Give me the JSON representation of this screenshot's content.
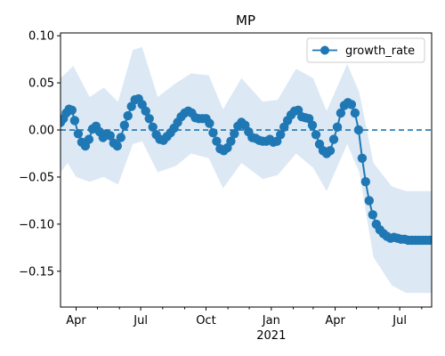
{
  "chart_data": {
    "type": "line",
    "title": "MP",
    "xlabel": "",
    "ylabel": "",
    "x_tick_labels": [
      "Apr",
      "Jul",
      "Oct",
      "Jan",
      "Apr",
      "Jul"
    ],
    "x_tick_dates": [
      "2020-04-01",
      "2020-07-01",
      "2020-10-01",
      "2021-01-01",
      "2021-04-01",
      "2021-07-01"
    ],
    "x_year_label": "2021",
    "xlim": [
      "2020-03-10",
      "2021-08-15"
    ],
    "ylim": [
      -0.188,
      0.103
    ],
    "y_ticks": [
      0.1,
      0.05,
      0.0,
      -0.05,
      -0.1,
      -0.15
    ],
    "y_tick_labels": [
      "0.10",
      "0.05",
      "0.00",
      "−0.05",
      "−0.10",
      "−0.15"
    ],
    "reference_line": {
      "y": 0.0,
      "style": "dashed"
    },
    "legend": {
      "position": "top-right",
      "entries": [
        "growth_rate"
      ]
    },
    "colors": {
      "line": "#1f77b4",
      "band": "#dce9f5"
    },
    "series": [
      {
        "name": "growth_rate",
        "points": [
          [
            "2020-03-10",
            0.008
          ],
          [
            "2020-03-14",
            0.012
          ],
          [
            "2020-03-18",
            0.018
          ],
          [
            "2020-03-22",
            0.022
          ],
          [
            "2020-03-26",
            0.021
          ],
          [
            "2020-03-30",
            0.01
          ],
          [
            "2020-04-04",
            -0.004
          ],
          [
            "2020-04-09",
            -0.013
          ],
          [
            "2020-04-14",
            -0.017
          ],
          [
            "2020-04-19",
            -0.01
          ],
          [
            "2020-04-24",
            0.001
          ],
          [
            "2020-04-29",
            0.004
          ],
          [
            "2020-05-04",
            -0.002
          ],
          [
            "2020-05-09",
            -0.008
          ],
          [
            "2020-05-14",
            -0.004
          ],
          [
            "2020-05-19",
            -0.006
          ],
          [
            "2020-05-24",
            -0.014
          ],
          [
            "2020-05-29",
            -0.017
          ],
          [
            "2020-06-03",
            -0.008
          ],
          [
            "2020-06-08",
            0.005
          ],
          [
            "2020-06-13",
            0.015
          ],
          [
            "2020-06-18",
            0.025
          ],
          [
            "2020-06-23",
            0.032
          ],
          [
            "2020-06-28",
            0.033
          ],
          [
            "2020-07-03",
            0.027
          ],
          [
            "2020-07-08",
            0.02
          ],
          [
            "2020-07-13",
            0.012
          ],
          [
            "2020-07-18",
            0.003
          ],
          [
            "2020-07-23",
            -0.005
          ],
          [
            "2020-07-28",
            -0.01
          ],
          [
            "2020-08-02",
            -0.011
          ],
          [
            "2020-08-07",
            -0.007
          ],
          [
            "2020-08-12",
            -0.003
          ],
          [
            "2020-08-17",
            0.002
          ],
          [
            "2020-08-22",
            0.008
          ],
          [
            "2020-08-27",
            0.014
          ],
          [
            "2020-09-01",
            0.018
          ],
          [
            "2020-09-06",
            0.02
          ],
          [
            "2020-09-11",
            0.018
          ],
          [
            "2020-09-16",
            0.013
          ],
          [
            "2020-09-21",
            0.012
          ],
          [
            "2020-09-26",
            0.012
          ],
          [
            "2020-10-01",
            0.012
          ],
          [
            "2020-10-06",
            0.007
          ],
          [
            "2020-10-11",
            -0.003
          ],
          [
            "2020-10-16",
            -0.012
          ],
          [
            "2020-10-21",
            -0.02
          ],
          [
            "2020-10-26",
            -0.022
          ],
          [
            "2020-10-31",
            -0.019
          ],
          [
            "2020-11-05",
            -0.012
          ],
          [
            "2020-11-10",
            -0.004
          ],
          [
            "2020-11-15",
            0.004
          ],
          [
            "2020-11-20",
            0.008
          ],
          [
            "2020-11-25",
            0.005
          ],
          [
            "2020-11-30",
            -0.002
          ],
          [
            "2020-12-05",
            -0.008
          ],
          [
            "2020-12-10",
            -0.009
          ],
          [
            "2020-12-15",
            -0.011
          ],
          [
            "2020-12-20",
            -0.012
          ],
          [
            "2020-12-25",
            -0.012
          ],
          [
            "2020-12-30",
            -0.01
          ],
          [
            "2021-01-04",
            -0.013
          ],
          [
            "2021-01-09",
            -0.012
          ],
          [
            "2021-01-14",
            -0.005
          ],
          [
            "2021-01-19",
            0.003
          ],
          [
            "2021-01-24",
            0.01
          ],
          [
            "2021-01-29",
            0.016
          ],
          [
            "2021-02-03",
            0.02
          ],
          [
            "2021-02-08",
            0.021
          ],
          [
            "2021-02-13",
            0.014
          ],
          [
            "2021-02-18",
            0.013
          ],
          [
            "2021-02-23",
            0.012
          ],
          [
            "2021-02-28",
            0.005
          ],
          [
            "2021-03-05",
            -0.005
          ],
          [
            "2021-03-10",
            -0.015
          ],
          [
            "2021-03-15",
            -0.022
          ],
          [
            "2021-03-20",
            -0.025
          ],
          [
            "2021-03-25",
            -0.022
          ],
          [
            "2021-03-30",
            -0.01
          ],
          [
            "2021-04-04",
            0.003
          ],
          [
            "2021-04-09",
            0.018
          ],
          [
            "2021-04-14",
            0.026
          ],
          [
            "2021-04-19",
            0.029
          ],
          [
            "2021-04-24",
            0.027
          ],
          [
            "2021-04-29",
            0.018
          ],
          [
            "2021-05-04",
            0.0
          ],
          [
            "2021-05-09",
            -0.03
          ],
          [
            "2021-05-14",
            -0.055
          ],
          [
            "2021-05-19",
            -0.075
          ],
          [
            "2021-05-24",
            -0.09
          ],
          [
            "2021-05-29",
            -0.1
          ],
          [
            "2021-06-03",
            -0.106
          ],
          [
            "2021-06-08",
            -0.11
          ],
          [
            "2021-06-13",
            -0.113
          ],
          [
            "2021-06-18",
            -0.115
          ],
          [
            "2021-06-23",
            -0.114
          ],
          [
            "2021-06-28",
            -0.115
          ],
          [
            "2021-07-03",
            -0.116
          ],
          [
            "2021-07-08",
            -0.116
          ],
          [
            "2021-07-13",
            -0.117
          ],
          [
            "2021-07-18",
            -0.117
          ],
          [
            "2021-07-23",
            -0.117
          ],
          [
            "2021-07-28",
            -0.117
          ],
          [
            "2021-08-02",
            -0.117
          ],
          [
            "2021-08-07",
            -0.117
          ],
          [
            "2021-08-12",
            -0.117
          ]
        ]
      }
    ],
    "uncertainty_band": {
      "lower": [
        [
          "2020-03-10",
          -0.045
        ],
        [
          "2020-03-20",
          -0.035
        ],
        [
          "2020-04-01",
          -0.05
        ],
        [
          "2020-04-20",
          -0.055
        ],
        [
          "2020-05-10",
          -0.05
        ],
        [
          "2020-05-30",
          -0.058
        ],
        [
          "2020-06-20",
          -0.015
        ],
        [
          "2020-07-03",
          -0.012
        ],
        [
          "2020-07-25",
          -0.045
        ],
        [
          "2020-08-20",
          -0.038
        ],
        [
          "2020-09-10",
          -0.025
        ],
        [
          "2020-10-05",
          -0.03
        ],
        [
          "2020-10-25",
          -0.062
        ],
        [
          "2020-11-20",
          -0.035
        ],
        [
          "2020-12-20",
          -0.052
        ],
        [
          "2021-01-10",
          -0.048
        ],
        [
          "2021-02-05",
          -0.025
        ],
        [
          "2021-03-01",
          -0.04
        ],
        [
          "2021-03-20",
          -0.065
        ],
        [
          "2021-04-18",
          -0.015
        ],
        [
          "2021-05-05",
          -0.045
        ],
        [
          "2021-05-25",
          -0.135
        ],
        [
          "2021-06-20",
          -0.165
        ],
        [
          "2021-07-10",
          -0.173
        ],
        [
          "2021-08-15",
          -0.173
        ]
      ],
      "upper": [
        [
          "2020-03-10",
          0.055
        ],
        [
          "2020-03-20",
          0.062
        ],
        [
          "2020-03-28",
          0.068
        ],
        [
          "2020-04-20",
          0.035
        ],
        [
          "2020-05-10",
          0.045
        ],
        [
          "2020-05-30",
          0.03
        ],
        [
          "2020-06-20",
          0.085
        ],
        [
          "2020-07-03",
          0.088
        ],
        [
          "2020-07-25",
          0.035
        ],
        [
          "2020-08-20",
          0.05
        ],
        [
          "2020-09-10",
          0.06
        ],
        [
          "2020-10-05",
          0.058
        ],
        [
          "2020-10-25",
          0.022
        ],
        [
          "2020-11-20",
          0.055
        ],
        [
          "2020-12-20",
          0.03
        ],
        [
          "2021-01-10",
          0.032
        ],
        [
          "2021-02-05",
          0.065
        ],
        [
          "2021-03-01",
          0.055
        ],
        [
          "2021-03-20",
          0.02
        ],
        [
          "2021-04-18",
          0.07
        ],
        [
          "2021-05-05",
          0.04
        ],
        [
          "2021-05-25",
          -0.035
        ],
        [
          "2021-06-20",
          -0.06
        ],
        [
          "2021-07-10",
          -0.065
        ],
        [
          "2021-08-15",
          -0.065
        ]
      ]
    }
  }
}
